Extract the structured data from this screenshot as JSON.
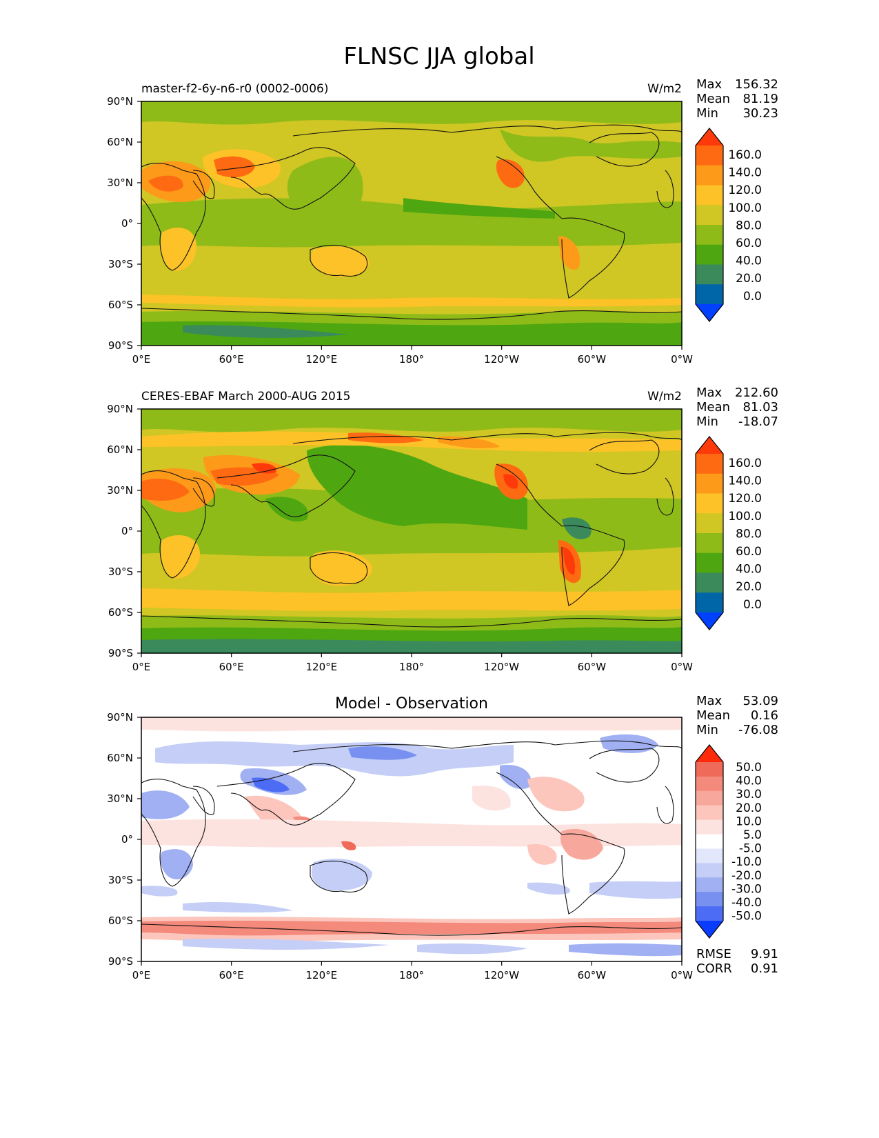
{
  "figure_title": "FLNSC JJA global",
  "colors": {
    "abs_levels": [
      "#0040ff",
      "#0066a8",
      "#3a8a5c",
      "#4ea710",
      "#8fbb19",
      "#d0c624",
      "#fcc227",
      "#fd9a1a",
      "#fe6a12",
      "#ff3a0a"
    ],
    "diff_levels": [
      "#0a3cff",
      "#4d6cf5",
      "#7890f0",
      "#a0b0f2",
      "#c4cef6",
      "#e2e7fb",
      "#ffffff",
      "#fde3df",
      "#fcc6bd",
      "#f8a79c",
      "#f48a7c",
      "#ef6a58",
      "#ff2a0a"
    ]
  },
  "chart_data": [
    {
      "type": "heatmap",
      "map_type": "global lat-lon contour map",
      "title_left": "master-f2-6y-n6-r0 (0002-0006)",
      "title_right": "W/m2",
      "stats": {
        "max_label": "Max",
        "max": "156.32",
        "mean_label": "Mean",
        "mean": "81.19",
        "min_label": "Min",
        "min": "30.23"
      },
      "xticks": [
        "0°E",
        "60°E",
        "120°E",
        "180°",
        "120°W",
        "60°W",
        "0°W"
      ],
      "yticks": [
        "90°N",
        "60°N",
        "30°N",
        "0°",
        "30°S",
        "60°S",
        "90°S"
      ],
      "xlim": [
        0,
        360
      ],
      "ylim": [
        -90,
        90
      ],
      "colorbar_levels": [
        "160.0",
        "140.0",
        "120.0",
        "100.0",
        "80.0",
        "60.0",
        "40.0",
        "20.0",
        "0.0"
      ],
      "colorbar_extend": "both"
    },
    {
      "type": "heatmap",
      "map_type": "global lat-lon contour map",
      "title_left": "CERES-EBAF March 2000-AUG 2015",
      "title_right": "W/m2",
      "stats": {
        "max_label": "Max",
        "max": "212.60",
        "mean_label": "Mean",
        "mean": "81.03",
        "min_label": "Min",
        "min": "-18.07"
      },
      "xticks": [
        "0°E",
        "60°E",
        "120°E",
        "180°",
        "120°W",
        "60°W",
        "0°W"
      ],
      "yticks": [
        "90°N",
        "60°N",
        "30°N",
        "0°",
        "30°S",
        "60°S",
        "90°S"
      ],
      "xlim": [
        0,
        360
      ],
      "ylim": [
        -90,
        90
      ],
      "colorbar_levels": [
        "160.0",
        "140.0",
        "120.0",
        "100.0",
        "80.0",
        "60.0",
        "40.0",
        "20.0",
        "0.0"
      ],
      "colorbar_extend": "both"
    },
    {
      "type": "heatmap",
      "map_type": "global lat-lon contour map (difference)",
      "title_center": "Model - Observation",
      "stats": {
        "max_label": "Max",
        "max": "53.09",
        "mean_label": "Mean",
        "mean": "0.16",
        "min_label": "Min",
        "min": "-76.08"
      },
      "extra_stats": {
        "rmse_label": "RMSE",
        "rmse": "9.91",
        "corr_label": "CORR",
        "corr": "0.91"
      },
      "xticks": [
        "0°E",
        "60°E",
        "120°E",
        "180°",
        "120°W",
        "60°W",
        "0°W"
      ],
      "yticks": [
        "90°N",
        "60°N",
        "30°N",
        "0°",
        "30°S",
        "60°S",
        "90°S"
      ],
      "xlim": [
        0,
        360
      ],
      "ylim": [
        -90,
        90
      ],
      "colorbar_levels": [
        "50.0",
        "40.0",
        "30.0",
        "20.0",
        "10.0",
        "5.0",
        "-5.0",
        "-10.0",
        "-20.0",
        "-30.0",
        "-40.0",
        "-50.0"
      ],
      "colorbar_extend": "both"
    }
  ]
}
